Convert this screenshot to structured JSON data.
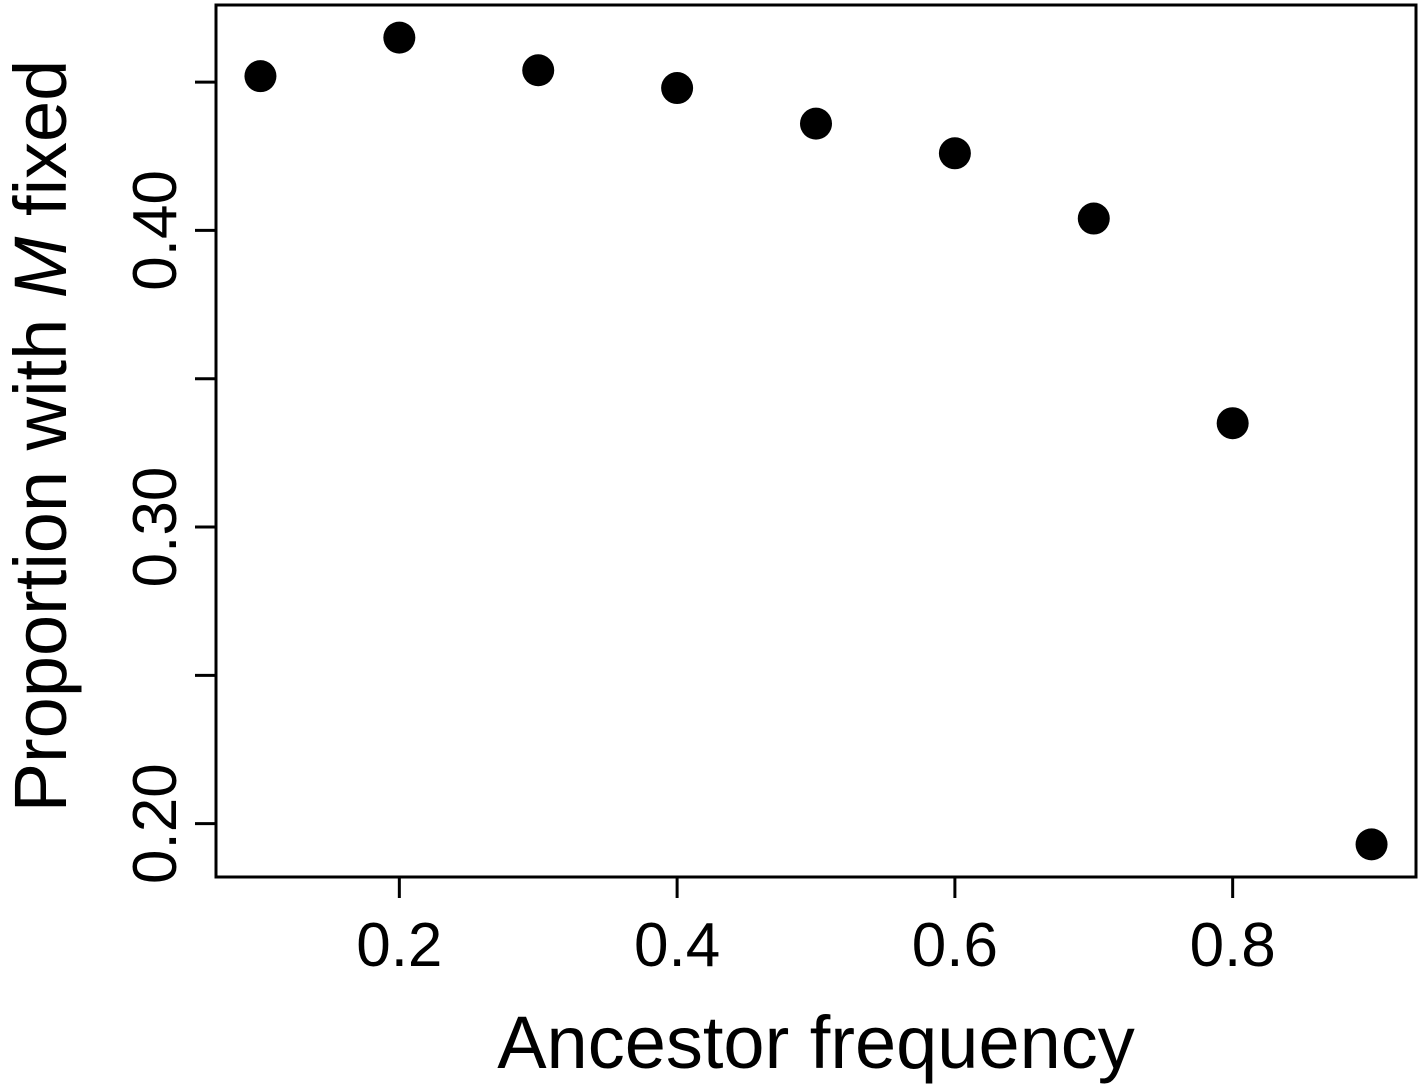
{
  "chart_data": {
    "type": "scatter",
    "title": "",
    "xlabel": "Ancestor frequency",
    "ylabel_parts": [
      "Proportion with ",
      "M",
      " fixed"
    ],
    "x": [
      0.1,
      0.2,
      0.3,
      0.4,
      0.5,
      0.6,
      0.7,
      0.8,
      0.9
    ],
    "y": [
      0.452,
      0.465,
      0.454,
      0.448,
      0.436,
      0.426,
      0.404,
      0.335,
      0.193
    ],
    "xlim": [
      0.068,
      0.932
    ],
    "ylim": [
      0.182,
      0.476
    ],
    "xticks": [
      0.2,
      0.4,
      0.6,
      0.8
    ],
    "xtick_labels": [
      "0.2",
      "0.4",
      "0.6",
      "0.8"
    ],
    "yticks": [
      0.2,
      0.25,
      0.3,
      0.35,
      0.4,
      0.45
    ],
    "ytick_labels": [
      "0.20",
      "",
      "0.30",
      "",
      "0.40",
      ""
    ],
    "grid": false,
    "legend": "none",
    "marker_color": "#000000"
  }
}
